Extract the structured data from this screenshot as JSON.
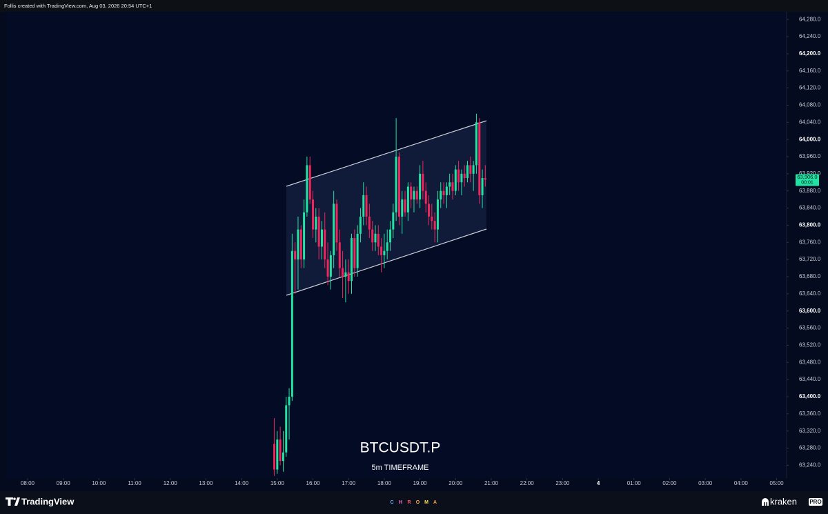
{
  "header": "Follis created with TradingView.com, Aug 03, 2026 20:54 UTC+1",
  "chart_data": {
    "type": "candlestick",
    "watermark_title": "BTCUSDT.P",
    "watermark_subtitle": "5m TIMEFRAME",
    "up_color": "#22e3a4",
    "down_color": "#f2245c",
    "grid": false,
    "ylim": [
      63210,
      64298
    ],
    "yticks": [
      {
        "value": 63240,
        "label": "63,240.0"
      },
      {
        "value": 63280,
        "label": "63,280.0"
      },
      {
        "value": 63320,
        "label": "63,320.0"
      },
      {
        "value": 63360,
        "label": "63,360.0"
      },
      {
        "value": 63400,
        "label": "63,400.0"
      },
      {
        "value": 63440,
        "label": "63,440.0"
      },
      {
        "value": 63480,
        "label": "63,480.0"
      },
      {
        "value": 63520,
        "label": "63,520.0"
      },
      {
        "value": 63560,
        "label": "63,560.0"
      },
      {
        "value": 63600,
        "label": "63,600.0"
      },
      {
        "value": 63640,
        "label": "63,640.0"
      },
      {
        "value": 63680,
        "label": "63,680.0"
      },
      {
        "value": 63720,
        "label": "63,720.0"
      },
      {
        "value": 63760,
        "label": "63,760.0"
      },
      {
        "value": 63800,
        "label": "63,800.0"
      },
      {
        "value": 63840,
        "label": "63,840.0"
      },
      {
        "value": 63880,
        "label": "63,880.0"
      },
      {
        "value": 63920,
        "label": "63,920.0"
      },
      {
        "value": 63960,
        "label": "63,960.0"
      },
      {
        "value": 64000,
        "label": "64,000.0"
      },
      {
        "value": 64040,
        "label": "64,040.0"
      },
      {
        "value": 64080,
        "label": "64,080.0"
      },
      {
        "value": 64120,
        "label": "64,120.0"
      },
      {
        "value": 64160,
        "label": "64,160.0"
      },
      {
        "value": 64200,
        "label": "64,200.0"
      },
      {
        "value": 64240,
        "label": "64,240.0"
      },
      {
        "value": 64280,
        "label": "64,280.0"
      }
    ],
    "xlim": [
      7.42,
      29.28
    ],
    "xticks": [
      {
        "value": 8,
        "label": "08:00"
      },
      {
        "value": 9,
        "label": "09:00"
      },
      {
        "value": 10,
        "label": "10:00"
      },
      {
        "value": 11,
        "label": "11:00"
      },
      {
        "value": 12,
        "label": "12:00"
      },
      {
        "value": 13,
        "label": "13:00"
      },
      {
        "value": 14,
        "label": "14:00"
      },
      {
        "value": 15,
        "label": "15:00"
      },
      {
        "value": 16,
        "label": "16:00"
      },
      {
        "value": 17,
        "label": "17:00"
      },
      {
        "value": 18,
        "label": "18:00"
      },
      {
        "value": 19,
        "label": "19:00"
      },
      {
        "value": 20,
        "label": "20:00"
      },
      {
        "value": 21,
        "label": "21:00"
      },
      {
        "value": 22,
        "label": "22:00"
      },
      {
        "value": 23,
        "label": "23:00"
      },
      {
        "value": 24,
        "label": "4"
      },
      {
        "value": 25,
        "label": "01:00"
      },
      {
        "value": 26,
        "label": "02:00"
      },
      {
        "value": 27,
        "label": "03:00"
      },
      {
        "value": 28,
        "label": "04:00"
      },
      {
        "value": 29,
        "label": "05:00"
      }
    ],
    "x": [
      14.917,
      15.0,
      15.083,
      15.167,
      15.25,
      15.333,
      15.417,
      15.5,
      15.583,
      15.667,
      15.75,
      15.833,
      15.917,
      16.0,
      16.083,
      16.167,
      16.25,
      16.333,
      16.417,
      16.5,
      16.583,
      16.667,
      16.75,
      16.833,
      16.917,
      17.0,
      17.083,
      17.167,
      17.25,
      17.333,
      17.417,
      17.5,
      17.583,
      17.667,
      17.75,
      17.833,
      17.917,
      18.0,
      18.083,
      18.167,
      18.25,
      18.333,
      18.417,
      18.5,
      18.583,
      18.667,
      18.75,
      18.833,
      18.917,
      19.0,
      19.083,
      19.167,
      19.25,
      19.333,
      19.417,
      19.5,
      19.583,
      19.667,
      19.75,
      19.833,
      19.917,
      20.0,
      20.083,
      20.167,
      20.25,
      20.333,
      20.417,
      20.5,
      20.583,
      20.667,
      20.75,
      20.833
    ],
    "open": [
      63290,
      63230,
      63300,
      63250,
      63270,
      63380,
      63400,
      63740,
      63720,
      63790,
      63720,
      63830,
      63940,
      63860,
      63790,
      63820,
      63750,
      63790,
      63720,
      63680,
      63730,
      63850,
      63760,
      63700,
      63680,
      63690,
      63670,
      63770,
      63700,
      63780,
      63820,
      63870,
      63820,
      63790,
      63760,
      63780,
      63750,
      63730,
      63740,
      63760,
      63790,
      63830,
      63960,
      63820,
      63860,
      63830,
      63890,
      63860,
      63880,
      63860,
      63920,
      63880,
      63850,
      63820,
      63810,
      63790,
      63860,
      63880,
      63870,
      63890,
      63900,
      63880,
      63930,
      63900,
      63920,
      63910,
      63940,
      63920,
      63940,
      64040,
      63870,
      63910
    ],
    "high": [
      63350,
      63320,
      63330,
      63320,
      63400,
      63420,
      63780,
      63760,
      63820,
      63800,
      63860,
      63960,
      63960,
      63880,
      63840,
      63840,
      63810,
      63830,
      63760,
      63740,
      63880,
      63860,
      63790,
      63740,
      63720,
      63720,
      63780,
      63790,
      63800,
      63840,
      63900,
      63890,
      63850,
      63810,
      63800,
      63800,
      63770,
      63780,
      63790,
      63810,
      63850,
      64050,
      63970,
      63880,
      63880,
      63900,
      63900,
      63890,
      63890,
      63940,
      63950,
      63900,
      63870,
      63850,
      63830,
      63880,
      63900,
      63900,
      63900,
      63920,
      63920,
      63940,
      63950,
      63930,
      63940,
      63950,
      63960,
      63950,
      64060,
      64050,
      63930,
      63940
    ],
    "low": [
      63215,
      63220,
      63240,
      63225,
      63260,
      63300,
      63390,
      63640,
      63650,
      63700,
      63700,
      63820,
      63850,
      63770,
      63760,
      63720,
      63720,
      63700,
      63660,
      63650,
      63700,
      63740,
      63680,
      63630,
      63620,
      63640,
      63640,
      63680,
      63680,
      63760,
      63800,
      63800,
      63770,
      63740,
      63740,
      63730,
      63690,
      63700,
      63720,
      63740,
      63770,
      63810,
      63800,
      63780,
      63820,
      63810,
      63840,
      63830,
      63850,
      63840,
      63860,
      63830,
      63800,
      63790,
      63760,
      63760,
      63840,
      63850,
      63840,
      63870,
      63860,
      63870,
      63880,
      63870,
      63890,
      63900,
      63900,
      63880,
      63920,
      63850,
      63840,
      63890
    ],
    "close": [
      63230,
      63300,
      63250,
      63270,
      63380,
      63400,
      63740,
      63720,
      63790,
      63720,
      63830,
      63940,
      63860,
      63790,
      63820,
      63750,
      63790,
      63720,
      63680,
      63730,
      63850,
      63760,
      63700,
      63680,
      63690,
      63670,
      63770,
      63700,
      63780,
      63820,
      63870,
      63820,
      63790,
      63760,
      63780,
      63750,
      63730,
      63740,
      63760,
      63790,
      63830,
      63960,
      63820,
      63860,
      63830,
      63890,
      63860,
      63880,
      63860,
      63920,
      63880,
      63850,
      63820,
      63810,
      63790,
      63860,
      63880,
      63870,
      63890,
      63900,
      63880,
      63930,
      63900,
      63920,
      63910,
      63940,
      63920,
      63940,
      64040,
      63870,
      63910,
      63906
    ],
    "last_price": {
      "value": 63906,
      "label": "63,906.0"
    },
    "countdown": "00:01"
  },
  "footer": {
    "brand": "TradingView",
    "sponsor_letters": [
      "C",
      "H",
      "R",
      "O",
      "M",
      "A"
    ],
    "partner": "kraken",
    "partner_badge": "PRO"
  }
}
